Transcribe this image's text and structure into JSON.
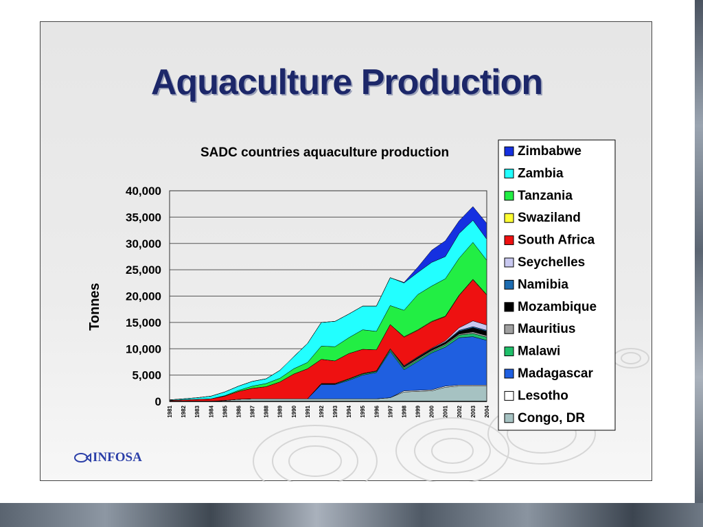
{
  "slide": {
    "title": "Aquaculture Production",
    "logo_text": "INFOSA"
  },
  "chart_data": {
    "type": "area",
    "stacked": true,
    "title": "SADC countries aquaculture production",
    "xlabel": "",
    "ylabel": "Tonnes",
    "ylim": [
      0,
      40000
    ],
    "yticks": [
      0,
      5000,
      10000,
      15000,
      20000,
      25000,
      30000,
      35000,
      40000
    ],
    "ytick_labels": [
      "0",
      "5,000",
      "10,000",
      "15,000",
      "20,000",
      "25,000",
      "30,000",
      "35,000",
      "40,000"
    ],
    "grid": true,
    "legend_position": "right",
    "categories": [
      "1981",
      "1982",
      "1983",
      "1984",
      "1985",
      "1986",
      "1987",
      "1988",
      "1989",
      "1990",
      "1991",
      "1992",
      "1993",
      "1994",
      "1995",
      "1996",
      "1997",
      "1998",
      "1999",
      "2000",
      "2001",
      "2002",
      "2003",
      "2004"
    ],
    "series": [
      {
        "name": "Congo, DR",
        "color": "#a6c2c2",
        "values": [
          0,
          0,
          0,
          0,
          200,
          400,
          500,
          500,
          500,
          500,
          500,
          500,
          500,
          500,
          500,
          500,
          700,
          1800,
          1900,
          2000,
          2700,
          2900,
          2900,
          2900
        ]
      },
      {
        "name": "Lesotho",
        "color": "#ffffff",
        "values": [
          0,
          0,
          0,
          0,
          0,
          0,
          0,
          0,
          0,
          0,
          0,
          0,
          0,
          0,
          0,
          0,
          0,
          200,
          200,
          200,
          200,
          200,
          200,
          200
        ]
      },
      {
        "name": "Madagascar",
        "color": "#1f5fe0",
        "values": [
          0,
          0,
          0,
          0,
          0,
          0,
          0,
          0,
          0,
          0,
          0,
          2700,
          2700,
          3500,
          4500,
          5000,
          8800,
          4000,
          5500,
          7000,
          7400,
          9000,
          9200,
          8500
        ]
      },
      {
        "name": "Malawi",
        "color": "#1fbf6a",
        "values": [
          0,
          0,
          0,
          0,
          0,
          0,
          0,
          0,
          0,
          0,
          0,
          100,
          100,
          200,
          200,
          200,
          300,
          300,
          300,
          300,
          400,
          500,
          600,
          600
        ]
      },
      {
        "name": "Mauritius",
        "color": "#a0a0a0",
        "values": [
          0,
          0,
          0,
          0,
          0,
          0,
          0,
          0,
          0,
          0,
          0,
          100,
          100,
          100,
          100,
          100,
          200,
          200,
          200,
          200,
          200,
          200,
          300,
          300
        ]
      },
      {
        "name": "Mozambique",
        "color": "#000000",
        "values": [
          0,
          0,
          0,
          0,
          0,
          0,
          0,
          0,
          0,
          0,
          0,
          0,
          0,
          0,
          0,
          0,
          0,
          100,
          200,
          200,
          300,
          500,
          800,
          800
        ]
      },
      {
        "name": "Namibia",
        "color": "#1c6bb0",
        "values": [
          0,
          0,
          0,
          0,
          0,
          0,
          0,
          0,
          0,
          0,
          0,
          0,
          0,
          0,
          0,
          0,
          0,
          100,
          100,
          100,
          100,
          200,
          200,
          200
        ]
      },
      {
        "name": "Seychelles",
        "color": "#c8c8f0",
        "values": [
          0,
          0,
          0,
          0,
          0,
          0,
          0,
          0,
          0,
          0,
          0,
          0,
          0,
          0,
          0,
          0,
          0,
          100,
          100,
          100,
          200,
          500,
          1100,
          1000
        ]
      },
      {
        "name": "South Africa",
        "color": "#ee1111",
        "values": [
          200,
          300,
          400,
          500,
          800,
          1500,
          2000,
          2300,
          3200,
          4700,
          5700,
          4600,
          4300,
          4800,
          4600,
          4000,
          4600,
          5400,
          5000,
          5000,
          4600,
          6100,
          7800,
          5700
        ]
      },
      {
        "name": "Swaziland",
        "color": "#ffff33",
        "values": [
          0,
          0,
          0,
          0,
          0,
          0,
          0,
          0,
          0,
          0,
          0,
          0,
          0,
          0,
          0,
          0,
          0,
          100,
          100,
          100,
          100,
          100,
          100,
          100
        ]
      },
      {
        "name": "Tanzania",
        "color": "#22ee44",
        "values": [
          0,
          0,
          0,
          0,
          100,
          200,
          400,
          600,
          700,
          1000,
          1200,
          2500,
          2700,
          3000,
          3700,
          3500,
          3600,
          5000,
          6700,
          6700,
          7100,
          7000,
          7000,
          6500
        ]
      },
      {
        "name": "Zambia",
        "color": "#22ffff",
        "values": [
          100,
          200,
          300,
          500,
          700,
          800,
          900,
          900,
          1500,
          2300,
          3600,
          4500,
          4800,
          4500,
          4500,
          4800,
          5300,
          5200,
          4200,
          4500,
          4200,
          4700,
          4200,
          4000
        ]
      },
      {
        "name": "Zimbabwe",
        "color": "#1530e0",
        "values": [
          0,
          0,
          0,
          0,
          0,
          0,
          0,
          0,
          0,
          0,
          0,
          0,
          0,
          0,
          0,
          0,
          0,
          100,
          1000,
          2300,
          3000,
          2400,
          2600,
          3000
        ]
      }
    ]
  }
}
